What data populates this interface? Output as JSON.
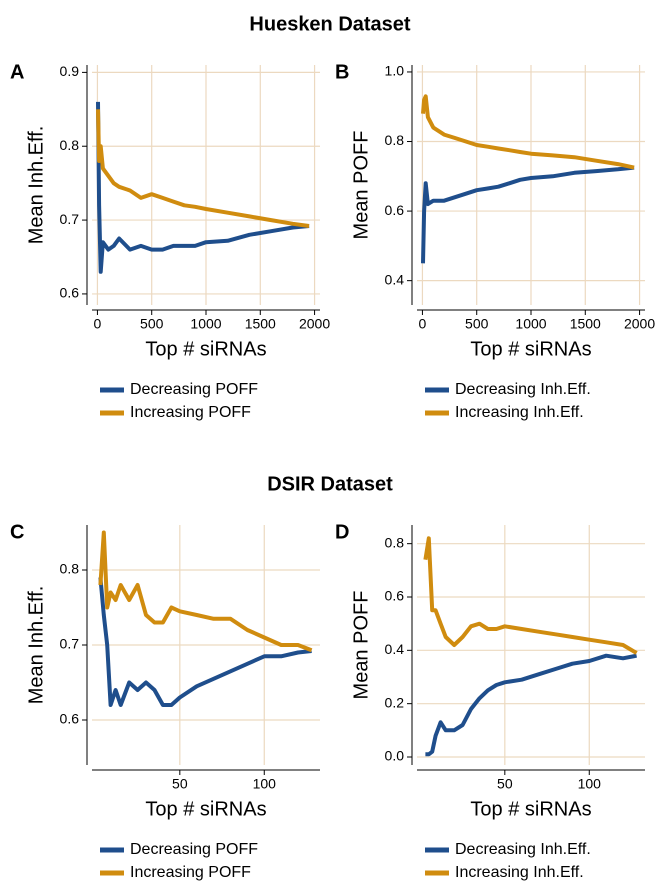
{
  "section_titles": [
    "Huesken Dataset",
    "DSIR Dataset"
  ],
  "chart_data": [
    {
      "type": "line",
      "label": "A",
      "xlabel": "Top # siRNAs",
      "ylabel": "Mean Inh.Eff.",
      "x": [
        5,
        15,
        30,
        50,
        100,
        150,
        200,
        300,
        400,
        500,
        600,
        700,
        800,
        900,
        1000,
        1200,
        1400,
        1600,
        1800,
        1950
      ],
      "series": [
        {
          "name": "Decreasing POFF",
          "color": "#1f4e8c",
          "values": [
            0.86,
            0.72,
            0.63,
            0.67,
            0.66,
            0.665,
            0.675,
            0.66,
            0.665,
            0.66,
            0.66,
            0.665,
            0.665,
            0.665,
            0.67,
            0.672,
            0.68,
            0.685,
            0.69,
            0.692
          ]
        },
        {
          "name": "Increasing POFF",
          "color": "#d08c0f",
          "values": [
            0.85,
            0.78,
            0.8,
            0.77,
            0.76,
            0.75,
            0.745,
            0.74,
            0.73,
            0.735,
            0.73,
            0.725,
            0.72,
            0.718,
            0.715,
            0.71,
            0.705,
            0.7,
            0.695,
            0.692
          ]
        }
      ],
      "xlim": [
        -50,
        2050
      ],
      "xticks": [
        0,
        500,
        1000,
        1500,
        2000
      ],
      "ylim": [
        0.585,
        0.91
      ],
      "yticks": [
        0.6,
        0.7,
        0.8,
        0.9
      ],
      "grid": true,
      "grid_color": "#ecd9c0"
    },
    {
      "type": "line",
      "label": "B",
      "xlabel": "Top # siRNAs",
      "ylabel": "Mean POFF",
      "x": [
        5,
        15,
        30,
        50,
        100,
        150,
        200,
        300,
        400,
        500,
        600,
        700,
        800,
        900,
        1000,
        1200,
        1400,
        1600,
        1800,
        1950
      ],
      "series": [
        {
          "name": "Decreasing Inh.Eff.",
          "color": "#1f4e8c",
          "values": [
            0.45,
            0.6,
            0.68,
            0.62,
            0.63,
            0.63,
            0.63,
            0.64,
            0.65,
            0.66,
            0.665,
            0.67,
            0.68,
            0.69,
            0.695,
            0.7,
            0.71,
            0.715,
            0.72,
            0.725
          ]
        },
        {
          "name": "Increasing Inh.Eff.",
          "color": "#d08c0f",
          "values": [
            0.88,
            0.92,
            0.93,
            0.87,
            0.84,
            0.83,
            0.82,
            0.81,
            0.8,
            0.79,
            0.785,
            0.78,
            0.775,
            0.77,
            0.765,
            0.76,
            0.755,
            0.745,
            0.735,
            0.725
          ]
        }
      ],
      "xlim": [
        -50,
        2050
      ],
      "xticks": [
        0,
        500,
        1000,
        1500,
        2000
      ],
      "ylim": [
        0.33,
        1.02
      ],
      "yticks": [
        0.4,
        0.6,
        0.8,
        {
          "value": 1,
          "label": "1.0"
        }
      ],
      "grid": true,
      "grid_color": "#ecd9c0"
    },
    {
      "type": "line",
      "label": "C",
      "xlabel": "Top # siRNAs",
      "ylabel": "Mean Inh.Eff.",
      "x": [
        3,
        5,
        7,
        9,
        12,
        15,
        20,
        25,
        30,
        35,
        40,
        45,
        50,
        60,
        70,
        80,
        90,
        100,
        110,
        120,
        128
      ],
      "series": [
        {
          "name": "Decreasing POFF",
          "color": "#1f4e8c",
          "values": [
            0.79,
            0.74,
            0.7,
            0.62,
            0.64,
            0.62,
            0.65,
            0.64,
            0.65,
            0.64,
            0.62,
            0.62,
            0.63,
            0.645,
            0.655,
            0.665,
            0.675,
            0.685,
            0.685,
            0.69,
            0.692
          ]
        },
        {
          "name": "Increasing POFF",
          "color": "#d08c0f",
          "values": [
            0.78,
            0.85,
            0.75,
            0.77,
            0.76,
            0.78,
            0.76,
            0.78,
            0.74,
            0.73,
            0.73,
            0.75,
            0.745,
            0.74,
            0.735,
            0.735,
            0.72,
            0.71,
            0.7,
            0.7,
            0.693
          ]
        }
      ],
      "xlim": [
        -2,
        133
      ],
      "xticks": [
        50,
        100
      ],
      "ylim": [
        0.54,
        0.86
      ],
      "yticks": [
        0.6,
        0.7,
        0.8
      ],
      "grid": true,
      "grid_color": "#ecd9c0"
    },
    {
      "type": "line",
      "label": "D",
      "xlabel": "Top # siRNAs",
      "ylabel": "Mean POFF",
      "x": [
        3,
        5,
        7,
        9,
        12,
        15,
        20,
        25,
        30,
        35,
        40,
        45,
        50,
        60,
        70,
        80,
        90,
        100,
        110,
        120,
        128
      ],
      "series": [
        {
          "name": "Decreasing Inh.Eff.",
          "color": "#1f4e8c",
          "values": [
            0.01,
            0.01,
            0.02,
            0.08,
            0.13,
            0.1,
            0.1,
            0.12,
            0.18,
            0.22,
            0.25,
            0.27,
            0.28,
            0.29,
            0.31,
            0.33,
            0.35,
            0.36,
            0.38,
            0.37,
            0.38
          ]
        },
        {
          "name": "Increasing Inh.Eff.",
          "color": "#d08c0f",
          "values": [
            0.74,
            0.82,
            0.55,
            0.55,
            0.5,
            0.45,
            0.42,
            0.45,
            0.49,
            0.5,
            0.48,
            0.48,
            0.49,
            0.48,
            0.47,
            0.46,
            0.45,
            0.44,
            0.43,
            0.42,
            0.39
          ]
        }
      ],
      "xlim": [
        -2,
        133
      ],
      "xticks": [
        50,
        100
      ],
      "ylim": [
        -0.03,
        0.87
      ],
      "yticks": [
        {
          "value": 0,
          "label": "0.0"
        },
        0.2,
        0.4,
        0.6,
        0.8
      ],
      "grid": true,
      "grid_color": "#ecd9c0"
    }
  ]
}
